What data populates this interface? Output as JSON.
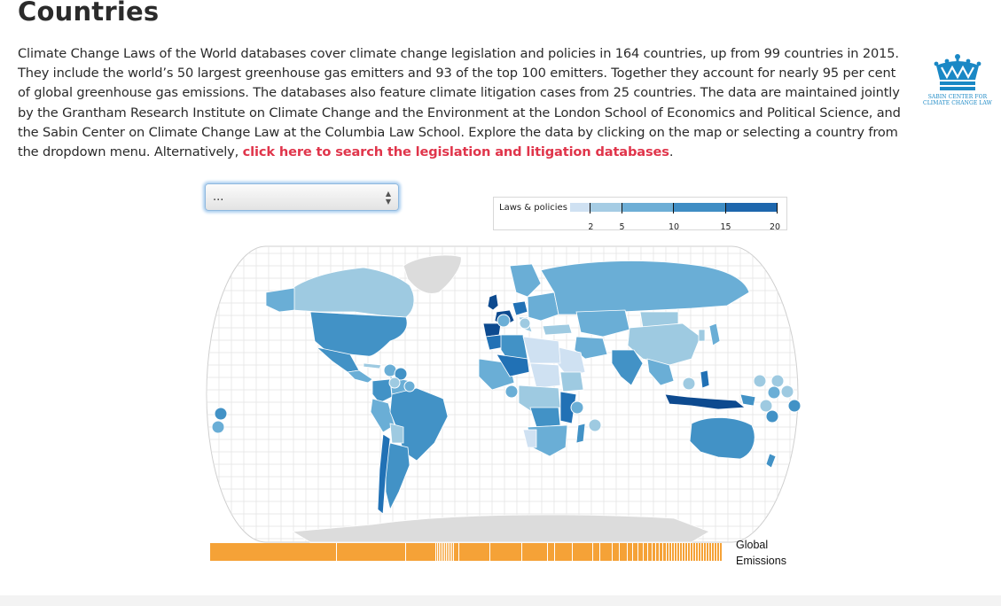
{
  "page": {
    "title": "Countries",
    "intro_text": "Climate Change Laws of the World databases cover climate change legislation and policies in 164 countries, up from 99 countries in 2015. They include the world’s 50 largest greenhouse gas emitters and 93 of the top 100 emitters. Together they account for nearly 95 per cent of global greenhouse gas emissions. The databases also feature climate litigation cases from 25 countries. The data are maintained jointly by the Grantham Research Institute on Climate Change and the Environment at the London School of Economics and Political Science, and the Sabin Center on Climate Change Law at the Columbia Law School. Explore the data by clicking on the map or selecting a country from the dropdown menu. Alternatively, ",
    "intro_link": "click here to search the legislation and litigation databases",
    "intro_end": "."
  },
  "logo": {
    "line1": "SABIN CENTER FOR",
    "line2": "CLIMATE CHANGE LAW",
    "color": "#1a88c5"
  },
  "country_select": {
    "value": "..."
  },
  "legend": {
    "label": "Laws & policies",
    "ticks": [
      2,
      5,
      10,
      15,
      20
    ],
    "max": 20,
    "colors": [
      "#cfe1f2",
      "#a5cce4",
      "#6daed6",
      "#3f8dc4",
      "#1e67ad"
    ]
  },
  "map": {
    "colors": {
      "ocean": "#ffffff",
      "graticule": "#dedede",
      "no_data": "#dcdcdc",
      "very_light": "#cfe1f2",
      "light": "#9ecae1",
      "medium": "#6aaed6",
      "medium_dark": "#4292c6",
      "dark": "#2171b5",
      "darkest": "#0d4a8f"
    }
  },
  "emissions": {
    "label_line1": "Global",
    "label_line2": "Emissions",
    "color": "#f5a237"
  }
}
